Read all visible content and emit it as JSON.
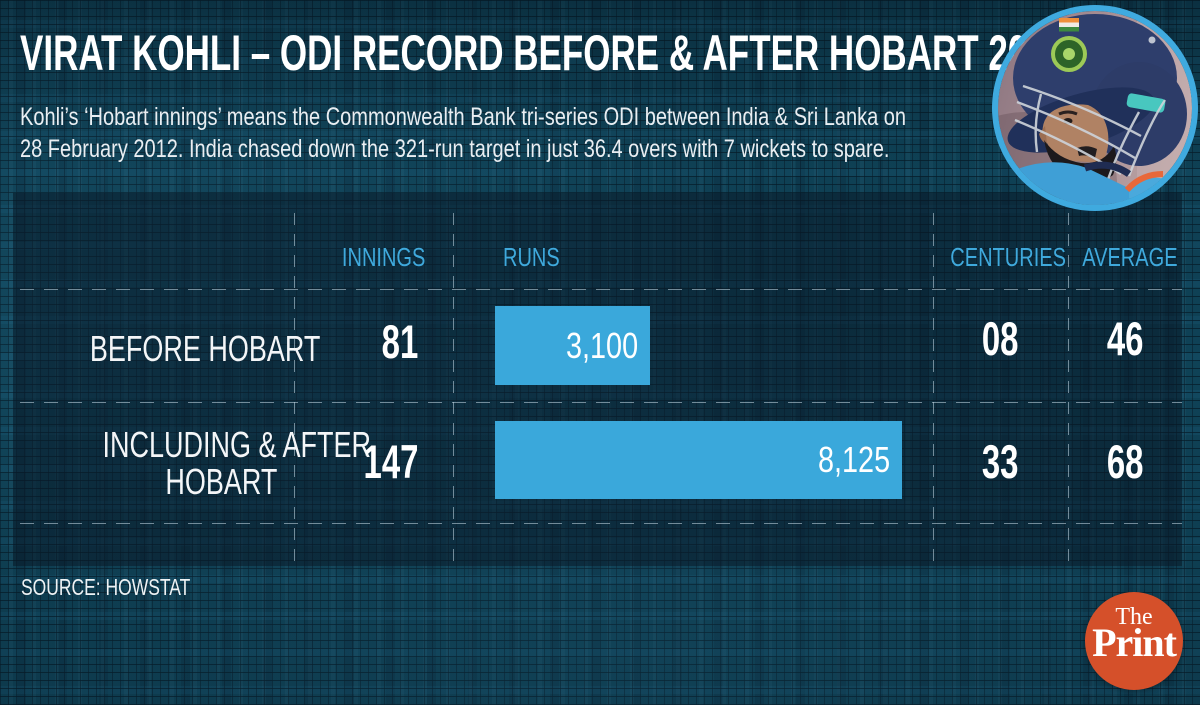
{
  "header": {
    "title": "VIRAT KOHLI – ODI RECORD BEFORE & AFTER HOBART 2012",
    "subtitle_line1": "Kohli’s ‘Hobart innings’ means the Commonwealth Bank tri-series ODI between India & Sri Lanka on",
    "subtitle_line2": "28 February 2012. India chased down the 321-run target in just 36.4 overs with 7 wickets to spare."
  },
  "table": {
    "headers": {
      "innings": "INNINGS",
      "runs": "RUNS",
      "centuries": "CENTURIES",
      "average": "AVERAGE"
    },
    "rows": [
      {
        "label_line1": "BEFORE HOBART",
        "label_line2": "",
        "innings": "81",
        "runs_label": "3,100",
        "centuries": "08",
        "average": "46"
      },
      {
        "label_line1": "INCLUDING & AFTER",
        "label_line2": "HOBART",
        "innings": "147",
        "runs_label": "8,125",
        "centuries": "33",
        "average": "68"
      }
    ]
  },
  "footer": {
    "source": "SOURCE: HOWSTAT"
  },
  "logo": {
    "line1": "The",
    "line2": "Print"
  },
  "icons": {
    "photo": "kohli-helmet-portrait"
  },
  "colors": {
    "bar_blue": "#3aa8db",
    "header_blue": "#3fa9dc",
    "logo_red": "#d5502a",
    "photo_ring": "#3faadf",
    "background_teal": "#10455a"
  },
  "chart_data": {
    "type": "bar",
    "orientation": "horizontal",
    "title": "VIRAT KOHLI – ODI RECORD BEFORE & AFTER HOBART 2012",
    "categories": [
      "BEFORE HOBART",
      "INCLUDING & AFTER HOBART"
    ],
    "series": [
      {
        "name": "INNINGS",
        "values": [
          81,
          147
        ]
      },
      {
        "name": "RUNS",
        "values": [
          3100,
          8125
        ]
      },
      {
        "name": "CENTURIES",
        "values": [
          8,
          33
        ]
      },
      {
        "name": "AVERAGE",
        "values": [
          46,
          68
        ]
      }
    ],
    "bar_series": "RUNS",
    "bar_value_labels": [
      "3,100",
      "8,125"
    ],
    "axis_max_runs": 8800,
    "legend": false,
    "grid": "dashed-table"
  }
}
